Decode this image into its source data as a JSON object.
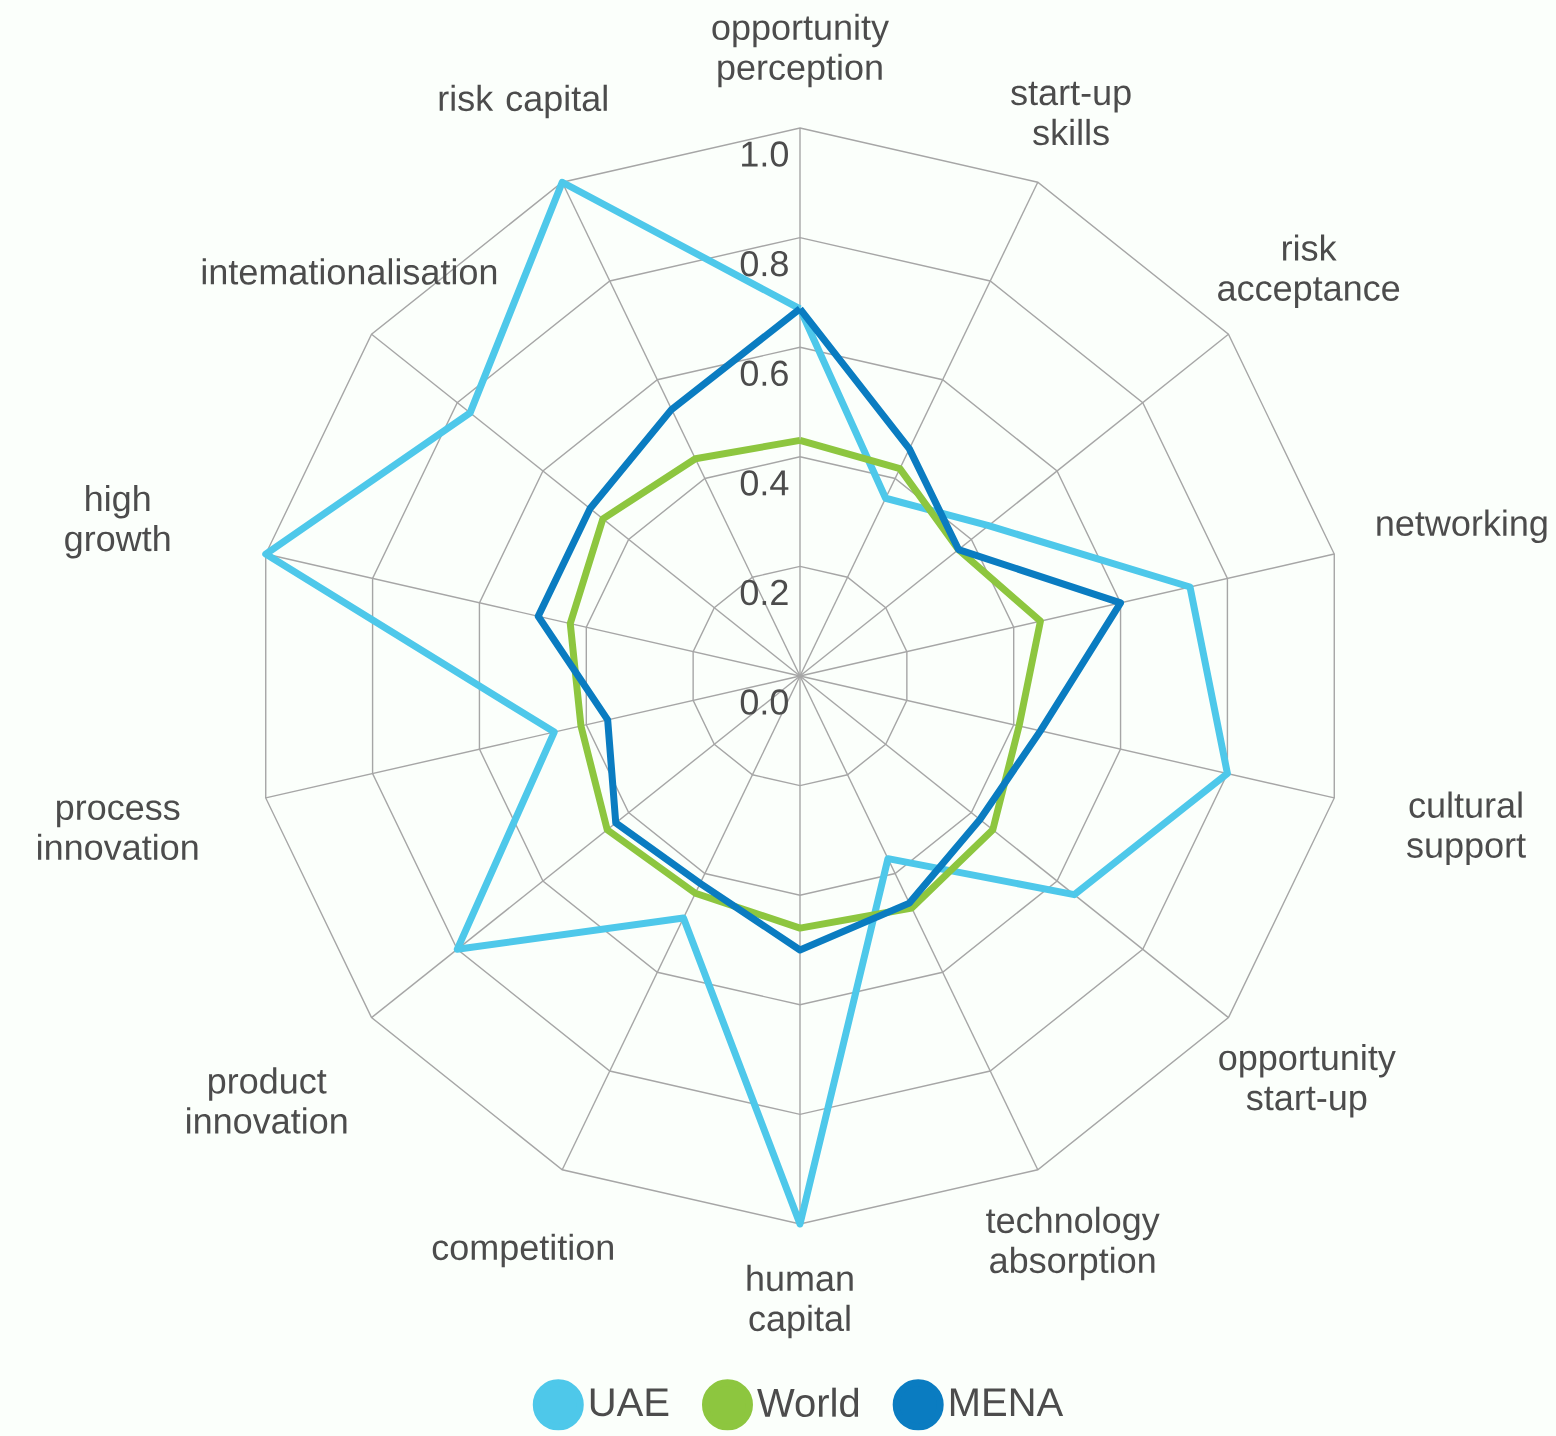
{
  "chart_data": {
    "type": "radar",
    "categories": [
      "opportunity perception",
      "start-up skills",
      "risk acceptance",
      "networking",
      "cultural support",
      "opportunity start-up",
      "technology absorption",
      "human capital",
      "competition",
      "product innovation",
      "process innovation",
      "high growth",
      "intemationalisation",
      "risk capital"
    ],
    "ylim": [
      0,
      1
    ],
    "yticks": [
      {
        "value": 0,
        "label": "0.0"
      },
      0.2,
      0.4,
      0.6,
      0.8,
      {
        "value": 1,
        "label": "1.0"
      }
    ],
    "grid": true,
    "legend": "bottom",
    "marker": "none",
    "line_style": "solid",
    "series": [
      {
        "name": "UAE",
        "color": "#4ec8ea",
        "values": [
          0.67,
          0.36,
          0.44,
          0.73,
          0.8,
          0.64,
          0.37,
          1.0,
          0.49,
          0.8,
          0.46,
          1.0,
          0.77,
          1.0
        ]
      },
      {
        "name": "World",
        "color": "#8dc63f",
        "values": [
          0.43,
          0.42,
          0.37,
          0.45,
          0.41,
          0.45,
          0.47,
          0.46,
          0.44,
          0.45,
          0.41,
          0.43,
          0.46,
          0.44
        ]
      },
      {
        "name": "MENA",
        "color": "#0a7cc1",
        "values": [
          0.67,
          0.46,
          0.37,
          0.6,
          0.45,
          0.42,
          0.46,
          0.5,
          0.42,
          0.43,
          0.36,
          0.49,
          0.49,
          0.54
        ]
      }
    ]
  }
}
